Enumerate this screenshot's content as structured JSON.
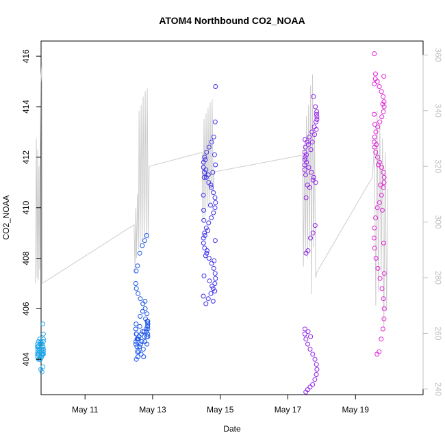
{
  "chart_data": {
    "type": "scatter",
    "title": "ATOM4 Northbound CO2_NOAA",
    "xlabel": "Date",
    "ylabel": "CO2_NOAA",
    "x_ticks": [
      "May 11",
      "May 13",
      "May 15",
      "May 17",
      "May 19"
    ],
    "x_tick_days": [
      11,
      13,
      15,
      17,
      19
    ],
    "xlim": [
      9.7,
      21.0
    ],
    "ylim": [
      402.6,
      416.6
    ],
    "y_ticks": [
      404,
      406,
      408,
      410,
      412,
      414,
      416
    ],
    "y2lim": [
      238,
      365
    ],
    "y2_ticks": [
      240,
      260,
      280,
      300,
      320,
      340,
      360
    ],
    "grid": false,
    "clusters": [
      {
        "day": 9.68,
        "spread": 0.09,
        "color": "#1aa3e8",
        "values": [
          404.0,
          404.1,
          404.2,
          404.3,
          404.4,
          404.5,
          404.6,
          404.7,
          404.8,
          404.2,
          404.3,
          404.5,
          404.1,
          404.0,
          404.4,
          404.6,
          404.3,
          404.5,
          404.7,
          404.8,
          404.2,
          404.4,
          404.1,
          404.3,
          404.5,
          404.6,
          404.2,
          404.4,
          404.7,
          404.0,
          403.6,
          403.5,
          403.7,
          404.2,
          405.0,
          405.4,
          404.2,
          404.6
        ]
      },
      {
        "day": 12.68,
        "spread": 0.18,
        "color": "#1a55ea",
        "values": [
          404.1,
          404.2,
          404.3,
          404.5,
          404.6,
          404.7,
          404.8,
          404.9,
          405.0,
          405.1,
          405.2,
          405.3,
          405.4,
          405.5,
          405.6,
          404.4,
          404.6,
          404.8,
          405.0,
          405.2,
          405.4,
          404.3,
          404.5,
          404.7,
          404.9,
          405.1,
          405.3,
          405.5,
          405.8,
          406.0,
          406.2,
          406.4,
          406.6,
          406.8,
          407.0,
          407.5,
          407.7,
          408.2,
          408.5,
          408.7,
          408.9,
          405.0,
          405.2,
          404.9,
          404.7,
          405.1,
          405.3,
          404.8,
          405.0,
          405.2,
          404.0,
          404.1,
          405.7,
          405.9,
          406.3,
          404.6,
          404.9,
          405.4
        ]
      },
      {
        "day": 14.68,
        "spread": 0.18,
        "color": "#3a2ee8",
        "values": [
          406.2,
          406.4,
          406.6,
          406.8,
          407.0,
          407.2,
          407.4,
          407.6,
          407.8,
          408.0,
          408.2,
          408.4,
          408.6,
          408.8,
          409.0,
          409.2,
          409.4,
          409.6,
          409.8,
          410.0,
          410.2,
          410.4,
          410.6,
          410.8,
          411.0,
          411.2,
          411.4,
          411.6,
          411.8,
          412.0,
          412.2,
          412.4,
          412.6,
          412.8,
          413.4,
          414.8,
          406.7,
          406.3,
          410.9,
          411.3,
          411.5,
          411.2,
          410.5,
          409.9,
          408.9,
          408.3,
          407.1,
          406.9,
          407.9,
          408.7,
          411.7,
          412.1,
          411.4,
          410.1,
          409.1,
          408.1,
          407.3,
          406.5,
          409.5,
          411.9
        ]
      },
      {
        "day": 17.68,
        "spread": 0.18,
        "color": "#8f1fea",
        "values": [
          411.0,
          411.2,
          411.4,
          411.6,
          411.8,
          412.0,
          412.2,
          412.4,
          412.6,
          412.8,
          413.0,
          413.2,
          413.4,
          413.6,
          413.8,
          414.0,
          414.4,
          412.3,
          412.5,
          412.1,
          411.9,
          411.5,
          411.3,
          410.9,
          410.8,
          412.6,
          412.9,
          413.1,
          413.5,
          413.7,
          409.3,
          409.0,
          408.8,
          408.3,
          408.2,
          405.2,
          405.0,
          404.8,
          404.6,
          404.4,
          404.2,
          404.0,
          403.8,
          403.6,
          403.4,
          403.2,
          403.0,
          402.9,
          402.8,
          402.7,
          411.7,
          412.7,
          410.4,
          405.1,
          404.9,
          411.1
        ]
      },
      {
        "day": 19.7,
        "spread": 0.15,
        "color": "#e020d8",
        "values": [
          416.1,
          415.3,
          415.0,
          414.8,
          414.6,
          414.4,
          414.2,
          414.0,
          413.8,
          413.6,
          413.4,
          413.2,
          413.0,
          412.8,
          412.6,
          412.4,
          412.2,
          412.0,
          411.8,
          411.6,
          411.4,
          411.2,
          411.0,
          410.8,
          410.5,
          410.2,
          410.0,
          409.6,
          409.2,
          408.8,
          408.4,
          408.0,
          407.6,
          407.2,
          406.8,
          406.4,
          406.0,
          405.6,
          405.2,
          404.8,
          404.3,
          404.2,
          415.1,
          414.9,
          413.7,
          413.3,
          412.5,
          411.7,
          410.9,
          409.9,
          408.6,
          407.4,
          415.2,
          414.1
        ]
      }
    ],
    "line_series": {
      "name": "",
      "color": "#cccccc",
      "axis": "right",
      "points": [
        [
          9.53,
          278
        ],
        [
          9.56,
          330
        ],
        [
          9.58,
          280
        ],
        [
          9.6,
          326
        ],
        [
          9.62,
          279
        ],
        [
          9.64,
          320
        ],
        [
          9.66,
          283
        ],
        [
          9.69,
          350
        ],
        [
          9.72,
          357
        ],
        [
          9.74,
          278
        ],
        [
          12.45,
          299
        ],
        [
          12.48,
          282
        ],
        [
          12.5,
          305
        ],
        [
          12.52,
          287
        ],
        [
          12.55,
          310
        ],
        [
          12.58,
          290
        ],
        [
          12.6,
          340
        ],
        [
          12.63,
          292
        ],
        [
          12.66,
          342
        ],
        [
          12.69,
          293
        ],
        [
          12.72,
          345
        ],
        [
          12.75,
          294
        ],
        [
          12.78,
          347
        ],
        [
          12.81,
          295
        ],
        [
          12.84,
          348
        ],
        [
          12.87,
          294
        ],
        [
          12.9,
          320
        ],
        [
          14.46,
          325
        ],
        [
          14.49,
          300
        ],
        [
          14.52,
          337
        ],
        [
          14.55,
          302
        ],
        [
          14.58,
          339
        ],
        [
          14.61,
          305
        ],
        [
          14.64,
          341
        ],
        [
          14.67,
          307
        ],
        [
          14.7,
          343
        ],
        [
          14.73,
          310
        ],
        [
          14.76,
          344
        ],
        [
          14.79,
          311
        ],
        [
          14.82,
          318
        ],
        [
          17.43,
          324
        ],
        [
          17.46,
          284
        ],
        [
          17.49,
          328
        ],
        [
          17.52,
          288
        ],
        [
          17.55,
          338
        ],
        [
          17.58,
          287
        ],
        [
          17.61,
          342
        ],
        [
          17.64,
          291
        ],
        [
          17.67,
          349
        ],
        [
          17.7,
          274
        ],
        [
          17.73,
          353
        ],
        [
          17.76,
          291
        ],
        [
          17.79,
          332
        ],
        [
          17.82,
          280
        ],
        [
          17.86,
          282
        ],
        [
          19.3,
          312
        ],
        [
          19.5,
          316
        ],
        [
          19.56,
          327
        ],
        [
          19.6,
          270
        ],
        [
          19.64,
          340
        ],
        [
          19.68,
          275
        ],
        [
          19.72,
          335
        ],
        [
          19.76,
          282
        ],
        [
          19.8,
          330
        ],
        [
          19.84,
          262
        ],
        [
          19.88,
          325
        ],
        [
          19.92,
          268
        ],
        [
          19.96,
          312
        ]
      ]
    }
  }
}
